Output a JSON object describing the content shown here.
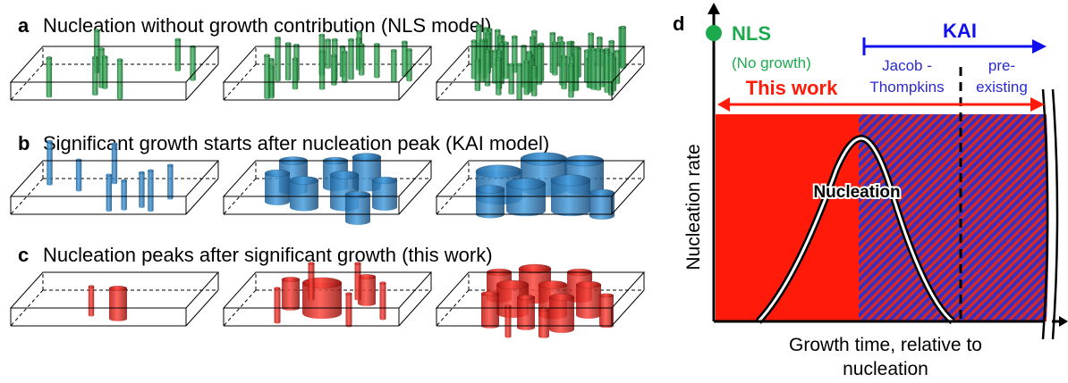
{
  "panels": {
    "a": {
      "letter": "a",
      "caption": "Nucleation without growth contribution (NLS model)",
      "color": "#2a9d4a"
    },
    "b": {
      "letter": "b",
      "caption": "Significant growth starts after nucleation peak (KAI model)",
      "color": "#2f7fc1"
    },
    "c": {
      "letter": "c",
      "caption": "Nucleation peaks after significant growth (this work)",
      "color": "#e8241c"
    }
  },
  "plot": {
    "letter": "d",
    "nls_label": "NLS",
    "nls_sub": "(No growth)",
    "kai_label": "KAI",
    "jacob_line1": "Jacob -",
    "jacob_line2": "Thompkins",
    "pre_line1": "pre-",
    "pre_line2": "existing",
    "this_work": "This work",
    "curve_label": "Nucleation",
    "ylabel": "Nucleation rate",
    "xlabel_line1": "Growth time, relative to",
    "xlabel_line2": "nucleation",
    "colors": {
      "red": "#ff1a0a",
      "blue": "#3232c8",
      "nls": "#1daa4e",
      "kai": "#1010ee"
    }
  }
}
